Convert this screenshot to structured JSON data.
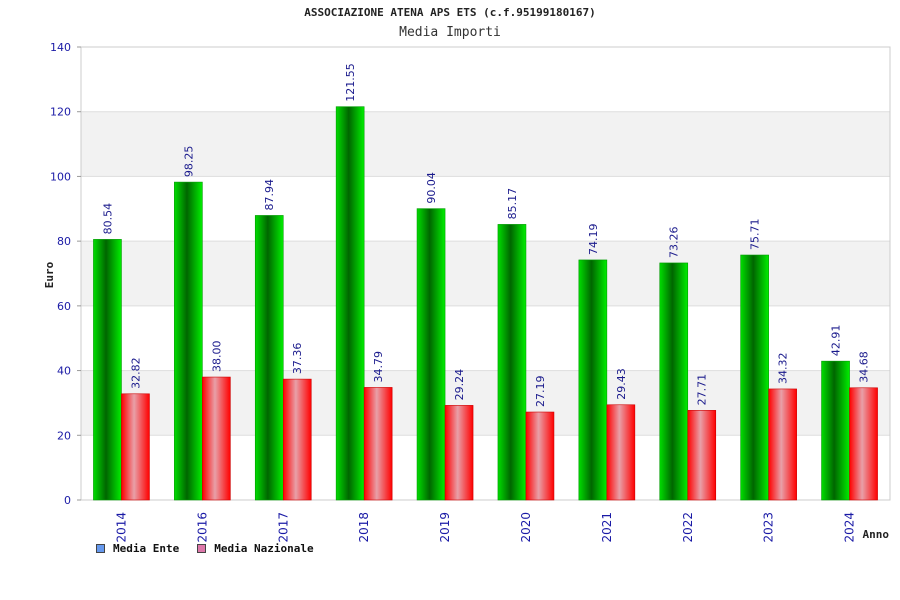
{
  "chart_data": {
    "type": "bar",
    "title": "ASSOCIAZIONE ATENA APS ETS (c.f.95199180167)",
    "subtitle": "Media Importi",
    "xlabel": "Anno",
    "ylabel": "Euro",
    "categories": [
      "2014",
      "2016",
      "2017",
      "2018",
      "2019",
      "2020",
      "2021",
      "2022",
      "2023",
      "2024"
    ],
    "series": [
      {
        "name": "Media Ente",
        "values": [
          80.54,
          98.25,
          87.94,
          121.55,
          90.04,
          85.17,
          74.19,
          73.26,
          75.71,
          42.91
        ],
        "labels": [
          "80.54",
          "98.25",
          "87.94",
          "121.55",
          "90.04",
          "85.17",
          "74.19",
          "73.26",
          "75.71",
          "42.91"
        ]
      },
      {
        "name": "Media Nazionale",
        "values": [
          32.82,
          38.0,
          37.36,
          34.79,
          29.24,
          27.19,
          29.43,
          27.71,
          34.32,
          34.68
        ],
        "labels": [
          "32.82",
          "38.00",
          "37.36",
          "34.79",
          "29.24",
          "27.19",
          "29.43",
          "27.71",
          "34.32",
          "34.68"
        ]
      }
    ],
    "ylim": [
      0,
      140
    ],
    "yticks": [
      "0",
      "20",
      "40",
      "60",
      "80",
      "100",
      "120",
      "140"
    ],
    "grid": true,
    "legend_position": "bottom-left",
    "colors": {
      "ente_bar": "#00cc00",
      "nazionale_bar": "#ff0000",
      "ente_legend": "#6699ee",
      "nazionale_legend": "#dd77aa",
      "band": "#f2f2f2"
    }
  }
}
